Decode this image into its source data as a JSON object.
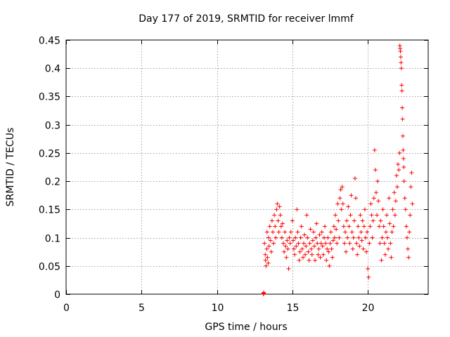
{
  "chart_data": {
    "type": "scatter",
    "title": "Day 177 of 2019, SRMTID for receiver lmmf",
    "xlabel": "GPS time / hours",
    "ylabel": "SRMTID / TECUs",
    "xlim": [
      0,
      24
    ],
    "ylim": [
      0,
      0.45
    ],
    "xticks": [
      0,
      5,
      10,
      15,
      20
    ],
    "xtick_labels": [
      "0",
      "5",
      "10",
      "15",
      "20"
    ],
    "yticks": [
      0,
      0.05,
      0.1,
      0.15,
      0.2,
      0.25,
      0.3,
      0.35,
      0.4,
      0.45
    ],
    "ytick_labels": [
      "0",
      "0.05",
      "0.1",
      "0.15",
      "0.2",
      "0.25",
      "0.3",
      "0.35",
      "0.4",
      "0.45"
    ],
    "grid": true,
    "marker": "plus",
    "color": "#ff0000",
    "series": [
      {
        "name": "SRMTID",
        "points": [
          [
            13.08,
            0.0
          ],
          [
            13.09,
            0.002
          ],
          [
            13.1,
            0.001
          ],
          [
            13.1,
            0.003
          ],
          [
            13.15,
            0.09
          ],
          [
            13.2,
            0.07
          ],
          [
            13.22,
            0.06
          ],
          [
            13.25,
            0.05
          ],
          [
            13.3,
            0.08
          ],
          [
            13.32,
            0.11
          ],
          [
            13.35,
            0.065
          ],
          [
            13.4,
            0.055
          ],
          [
            13.42,
            0.1
          ],
          [
            13.45,
            0.085
          ],
          [
            13.5,
            0.12
          ],
          [
            13.55,
            0.095
          ],
          [
            13.6,
            0.075
          ],
          [
            13.65,
            0.13
          ],
          [
            13.7,
            0.11
          ],
          [
            13.75,
            0.09
          ],
          [
            13.8,
            0.14
          ],
          [
            13.85,
            0.12
          ],
          [
            13.9,
            0.1
          ],
          [
            13.95,
            0.15
          ],
          [
            14.0,
            0.16
          ],
          [
            14.05,
            0.13
          ],
          [
            14.1,
            0.11
          ],
          [
            14.15,
            0.155
          ],
          [
            14.2,
            0.14
          ],
          [
            14.25,
            0.12
          ],
          [
            14.3,
            0.1
          ],
          [
            14.35,
            0.125
          ],
          [
            14.4,
            0.09
          ],
          [
            14.45,
            0.075
          ],
          [
            14.5,
            0.11
          ],
          [
            14.55,
            0.085
          ],
          [
            14.6,
            0.065
          ],
          [
            14.65,
            0.095
          ],
          [
            14.7,
            0.08
          ],
          [
            14.75,
            0.045
          ],
          [
            14.8,
            0.1
          ],
          [
            14.85,
            0.09
          ],
          [
            14.9,
            0.11
          ],
          [
            15.0,
            0.13
          ],
          [
            15.05,
            0.095
          ],
          [
            15.1,
            0.08
          ],
          [
            15.15,
            0.07
          ],
          [
            15.2,
            0.1
          ],
          [
            15.25,
            0.085
          ],
          [
            15.3,
            0.15
          ],
          [
            15.35,
            0.11
          ],
          [
            15.4,
            0.09
          ],
          [
            15.45,
            0.06
          ],
          [
            15.5,
            0.075
          ],
          [
            15.55,
            0.1
          ],
          [
            15.6,
            0.12
          ],
          [
            15.65,
            0.08
          ],
          [
            15.7,
            0.065
          ],
          [
            15.75,
            0.09
          ],
          [
            15.8,
            0.105
          ],
          [
            15.85,
            0.07
          ],
          [
            15.9,
            0.085
          ],
          [
            15.95,
            0.14
          ],
          [
            16.0,
            0.1
          ],
          [
            16.05,
            0.075
          ],
          [
            16.1,
            0.06
          ],
          [
            16.15,
            0.09
          ],
          [
            16.2,
            0.115
          ],
          [
            16.25,
            0.08
          ],
          [
            16.3,
            0.07
          ],
          [
            16.35,
            0.095
          ],
          [
            16.4,
            0.11
          ],
          [
            16.45,
            0.085
          ],
          [
            16.5,
            0.06
          ],
          [
            16.55,
            0.1
          ],
          [
            16.6,
            0.125
          ],
          [
            16.65,
            0.09
          ],
          [
            16.7,
            0.07
          ],
          [
            16.75,
            0.08
          ],
          [
            16.8,
            0.105
          ],
          [
            16.85,
            0.065
          ],
          [
            16.9,
            0.09
          ],
          [
            16.95,
            0.11
          ],
          [
            17.0,
            0.085
          ],
          [
            17.05,
            0.07
          ],
          [
            17.1,
            0.1
          ],
          [
            17.15,
            0.12
          ],
          [
            17.2,
            0.09
          ],
          [
            17.25,
            0.06
          ],
          [
            17.3,
            0.08
          ],
          [
            17.35,
            0.1
          ],
          [
            17.4,
            0.075
          ],
          [
            17.45,
            0.05
          ],
          [
            17.5,
            0.09
          ],
          [
            17.55,
            0.11
          ],
          [
            17.6,
            0.08
          ],
          [
            17.65,
            0.065
          ],
          [
            17.7,
            0.095
          ],
          [
            17.75,
            0.12
          ],
          [
            17.8,
            0.1
          ],
          [
            17.85,
            0.14
          ],
          [
            17.9,
            0.115
          ],
          [
            17.95,
            0.09
          ],
          [
            18.0,
            0.16
          ],
          [
            18.05,
            0.13
          ],
          [
            18.1,
            0.1
          ],
          [
            18.15,
            0.17
          ],
          [
            18.2,
            0.185
          ],
          [
            18.25,
            0.15
          ],
          [
            18.3,
            0.19
          ],
          [
            18.35,
            0.16
          ],
          [
            18.4,
            0.12
          ],
          [
            18.45,
            0.09
          ],
          [
            18.5,
            0.11
          ],
          [
            18.55,
            0.075
          ],
          [
            18.6,
            0.13
          ],
          [
            18.65,
            0.1
          ],
          [
            18.7,
            0.155
          ],
          [
            18.75,
            0.12
          ],
          [
            18.8,
            0.09
          ],
          [
            18.85,
            0.14
          ],
          [
            18.9,
            0.175
          ],
          [
            18.95,
            0.11
          ],
          [
            19.0,
            0.08
          ],
          [
            19.05,
            0.1
          ],
          [
            19.1,
            0.13
          ],
          [
            19.15,
            0.205
          ],
          [
            19.2,
            0.17
          ],
          [
            19.25,
            0.09
          ],
          [
            19.3,
            0.07
          ],
          [
            19.35,
            0.12
          ],
          [
            19.4,
            0.1
          ],
          [
            19.45,
            0.085
          ],
          [
            19.5,
            0.14
          ],
          [
            19.55,
            0.11
          ],
          [
            19.6,
            0.095
          ],
          [
            19.65,
            0.13
          ],
          [
            19.7,
            0.08
          ],
          [
            19.75,
            0.12
          ],
          [
            19.8,
            0.15
          ],
          [
            19.85,
            0.1
          ],
          [
            19.9,
            0.075
          ],
          [
            19.95,
            0.11
          ],
          [
            20.0,
            0.045
          ],
          [
            20.05,
            0.03
          ],
          [
            20.1,
            0.09
          ],
          [
            20.15,
            0.12
          ],
          [
            20.2,
            0.16
          ],
          [
            20.25,
            0.14
          ],
          [
            20.3,
            0.1
          ],
          [
            20.35,
            0.13
          ],
          [
            20.4,
            0.17
          ],
          [
            20.45,
            0.255
          ],
          [
            20.5,
            0.22
          ],
          [
            20.55,
            0.18
          ],
          [
            20.6,
            0.14
          ],
          [
            20.65,
            0.2
          ],
          [
            20.7,
            0.165
          ],
          [
            20.75,
            0.12
          ],
          [
            20.8,
            0.09
          ],
          [
            20.85,
            0.13
          ],
          [
            20.9,
            0.06
          ],
          [
            20.95,
            0.1
          ],
          [
            21.0,
            0.15
          ],
          [
            21.05,
            0.12
          ],
          [
            21.1,
            0.09
          ],
          [
            21.15,
            0.07
          ],
          [
            21.2,
            0.11
          ],
          [
            21.25,
            0.14
          ],
          [
            21.3,
            0.1
          ],
          [
            21.35,
            0.08
          ],
          [
            21.4,
            0.17
          ],
          [
            21.45,
            0.125
          ],
          [
            21.5,
            0.09
          ],
          [
            21.55,
            0.065
          ],
          [
            21.6,
            0.11
          ],
          [
            21.65,
            0.15
          ],
          [
            21.7,
            0.12
          ],
          [
            21.75,
            0.18
          ],
          [
            21.8,
            0.14
          ],
          [
            21.85,
            0.165
          ],
          [
            21.9,
            0.21
          ],
          [
            21.95,
            0.19
          ],
          [
            22.0,
            0.23
          ],
          [
            22.05,
            0.22
          ],
          [
            22.1,
            0.25
          ],
          [
            22.12,
            0.44
          ],
          [
            22.14,
            0.435
          ],
          [
            22.16,
            0.43
          ],
          [
            22.18,
            0.42
          ],
          [
            22.2,
            0.41
          ],
          [
            22.22,
            0.4
          ],
          [
            22.24,
            0.37
          ],
          [
            22.26,
            0.36
          ],
          [
            22.28,
            0.33
          ],
          [
            22.3,
            0.31
          ],
          [
            22.32,
            0.28
          ],
          [
            22.34,
            0.255
          ],
          [
            22.36,
            0.24
          ],
          [
            22.38,
            0.225
          ],
          [
            22.4,
            0.2
          ],
          [
            22.45,
            0.17
          ],
          [
            22.5,
            0.15
          ],
          [
            22.55,
            0.12
          ],
          [
            22.6,
            0.1
          ],
          [
            22.65,
            0.08
          ],
          [
            22.7,
            0.065
          ],
          [
            22.75,
            0.11
          ],
          [
            22.8,
            0.14
          ],
          [
            22.85,
            0.19
          ],
          [
            22.9,
            0.215
          ],
          [
            22.95,
            0.16
          ]
        ]
      }
    ]
  }
}
